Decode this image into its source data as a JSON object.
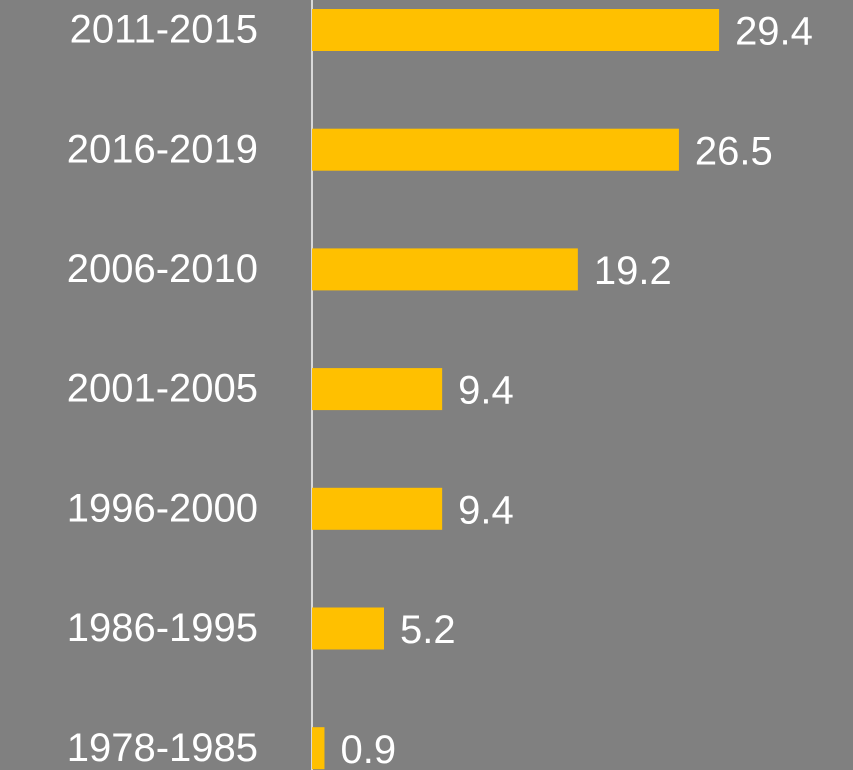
{
  "chart_data": {
    "type": "bar",
    "orientation": "horizontal",
    "categories": [
      "2011-2015",
      "2016-2019",
      "2006-2010",
      "2001-2005",
      "1996-2000",
      "1986-1995",
      "1978-1985"
    ],
    "values": [
      29.4,
      26.5,
      19.2,
      9.4,
      9.4,
      5.2,
      0.9
    ],
    "color": "#ffc000",
    "xlim": [
      0,
      39
    ]
  }
}
